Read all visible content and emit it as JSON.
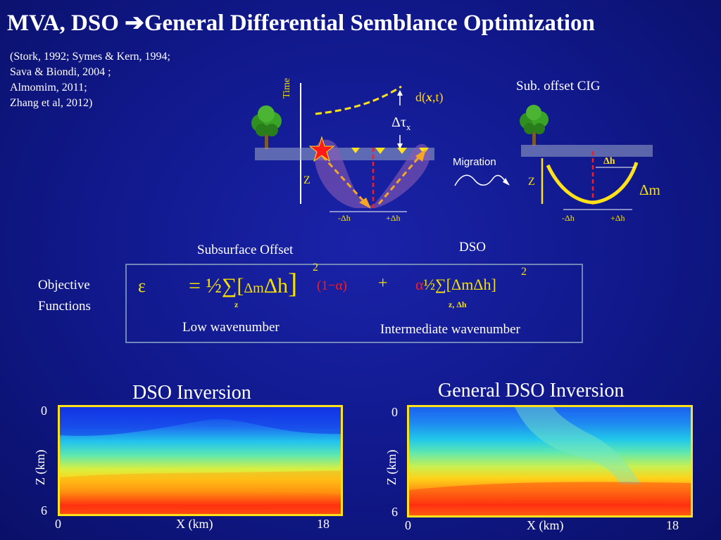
{
  "title": {
    "part1": "MVA, DSO ",
    "arrow": "➔",
    "part2": "General Differential Semblance Optimization"
  },
  "references": [
    "(Stork, 1992; Symes & Kern, 1994;",
    "Sava & Biondi, 2004 ;",
    "Almomim, 2011;",
    "Zhang et al, 2012)"
  ],
  "diagram_left": {
    "time_label": "Time",
    "z_label": "Z",
    "data_label_prefix": "d(",
    "data_label_x": "x",
    "data_label_suffix": ",t)",
    "delta_tau": "Δτ",
    "delta_tau_sub": "x",
    "minus_h": "-Δh",
    "plus_h": "+Δh"
  },
  "diagram_right": {
    "title": "Sub. offset CIG",
    "z_label": "Z",
    "delta_h": "Δh",
    "delta_m": "Δm",
    "minus_h": "-Δh",
    "plus_h": "+Δh"
  },
  "migration_label": "Migration",
  "labels": {
    "subsurface_offset": "Subsurface Offset",
    "dso": "DSO",
    "objective_line1": "Objective",
    "objective_line2": "Functions",
    "low_wavenumber": "Low wavenumber",
    "intermediate_wavenumber": "Intermediate wavenumber"
  },
  "equation": {
    "epsilon": "ε",
    "equals_half": "= ½",
    "sigma": "∑",
    "open_bracket": "[",
    "dm": "Δm",
    "dh": "Δh",
    "close_bracket": "]",
    "square": "2",
    "sub_z": "z",
    "one_minus_alpha": "(1−α)",
    "plus": "+",
    "alpha": "α",
    "half2": "½",
    "sigma2": "∑",
    "bracket2": "[ΔmΔh]",
    "square2": "2",
    "sub_zh": "z, Δh"
  },
  "panel_left": {
    "title": "DSO Inversion",
    "y_top": "0",
    "y_bottom": "6",
    "ylabel": "Z (km)",
    "x_left": "0",
    "x_right": "18",
    "xlabel": "X (km)"
  },
  "panel_right": {
    "title": "General DSO Inversion",
    "y_top": "0",
    "y_bottom": "6",
    "ylabel": "Z (km)",
    "x_left": "0",
    "x_right": "18",
    "xlabel": "X (km)"
  },
  "colors": {
    "yellow": "#ffe21a",
    "red": "#ff1a1a",
    "orange": "#f5a623",
    "box_border": "#6f88b8"
  }
}
